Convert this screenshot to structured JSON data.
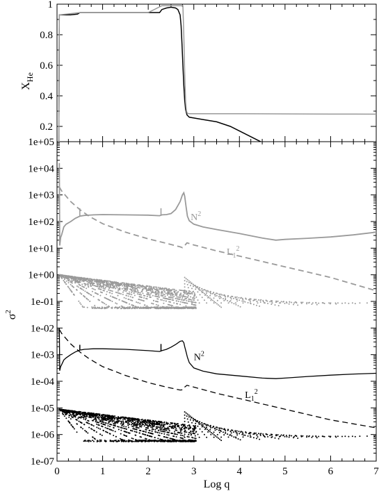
{
  "chart_data": [
    {
      "type": "line",
      "panel": "top",
      "ylabel": "X",
      "ylabel_sub": "He",
      "xlim": [
        0,
        7
      ],
      "ylim": [
        0.1,
        1.0
      ],
      "yticks": [
        0.2,
        0.4,
        0.6,
        0.8,
        1.0
      ],
      "ytick_labels": [
        "0.2",
        "0.4",
        "0.6",
        "0.8",
        "1"
      ],
      "series": [
        {
          "color": "#000000",
          "x": [
            0.0,
            0.04,
            0.05,
            0.1,
            0.2,
            0.3,
            0.45,
            0.5,
            0.55,
            0.6,
            0.8,
            1.0,
            1.5,
            2.0,
            2.25,
            2.3,
            2.4,
            2.5,
            2.6,
            2.65,
            2.7,
            2.72,
            2.74,
            2.76,
            2.78,
            2.8,
            2.82,
            2.85,
            2.9,
            3.0,
            3.2,
            3.5,
            3.8,
            4.0,
            4.2,
            4.4,
            4.6,
            4.8,
            4.9,
            5.0,
            5.2,
            5.6,
            6.0,
            6.5,
            7.0
          ],
          "y": [
            0.06,
            0.06,
            0.93,
            0.93,
            0.93,
            0.93,
            0.935,
            0.945,
            0.945,
            0.945,
            0.945,
            0.945,
            0.945,
            0.945,
            0.945,
            0.965,
            0.975,
            0.98,
            0.975,
            0.965,
            0.93,
            0.86,
            0.74,
            0.6,
            0.47,
            0.37,
            0.31,
            0.275,
            0.26,
            0.255,
            0.245,
            0.23,
            0.2,
            0.17,
            0.14,
            0.11,
            0.08,
            0.05,
            0.035,
            0.03,
            0.03,
            0.03,
            0.03,
            0.03,
            0.03
          ]
        },
        {
          "color": "#9a9a9a",
          "x": [
            0.0,
            0.04,
            0.05,
            0.5,
            1.0,
            2.0,
            2.3,
            2.5,
            2.7,
            2.76,
            2.78,
            2.8,
            2.82,
            2.84,
            2.86,
            2.9,
            3.0,
            4.0,
            5.0,
            6.0,
            7.0
          ],
          "y": [
            0.06,
            0.06,
            0.93,
            0.945,
            0.945,
            0.945,
            0.99,
            0.99,
            0.99,
            0.99,
            0.8,
            0.55,
            0.36,
            0.3,
            0.285,
            0.283,
            0.283,
            0.283,
            0.282,
            0.281,
            0.28
          ]
        }
      ]
    },
    {
      "type": "line",
      "panel": "bottom",
      "xlabel": "Log q",
      "ylabel": "σ",
      "ylabel_sup": "2",
      "yscale": "log",
      "xlim": [
        0,
        7
      ],
      "ylim_exponent": [
        -7,
        5
      ],
      "xticks": [
        0,
        1,
        2,
        3,
        4,
        5,
        6,
        7
      ],
      "xtick_labels": [
        "0",
        "1",
        "2",
        "3",
        "4",
        "5",
        "6",
        "7"
      ],
      "ytick_labels": [
        "1e-07",
        "1e-06",
        "1e-05",
        "1e-04",
        "1e-03",
        "1e-02",
        "1e-01",
        "1e+00",
        "1e+01",
        "1e+02",
        "1e+03",
        "1e+04",
        "1e+05"
      ],
      "series": [
        {
          "label": "N",
          "label_sup": "2",
          "color": "#9a9a9a",
          "style": "solid",
          "x": [
            0.05,
            0.06,
            0.08,
            0.1,
            0.15,
            0.2,
            0.3,
            0.4,
            0.5,
            0.6,
            0.8,
            1.0,
            1.5,
            2.0,
            2.25,
            2.3,
            2.4,
            2.5,
            2.6,
            2.7,
            2.75,
            2.78,
            2.8,
            2.83,
            2.86,
            2.9,
            3.0,
            3.2,
            3.5,
            4.0,
            4.5,
            4.8,
            5.0,
            5.5,
            6.0,
            6.5,
            7.0
          ],
          "exp": [
            4.2,
            1.1,
            1.4,
            1.5,
            1.8,
            1.9,
            2.0,
            2.12,
            2.2,
            2.23,
            2.25,
            2.26,
            2.25,
            2.24,
            2.22,
            2.25,
            2.26,
            2.3,
            2.45,
            2.75,
            3.0,
            3.08,
            2.95,
            2.55,
            2.2,
            2.03,
            1.9,
            1.8,
            1.7,
            1.55,
            1.38,
            1.3,
            1.33,
            1.37,
            1.42,
            1.5,
            1.6
          ]
        },
        {
          "label": "L",
          "label_sub": "1",
          "label_sup": "2",
          "color": "#9a9a9a",
          "style": "dashed",
          "x": [
            0.05,
            0.1,
            0.2,
            0.3,
            0.5,
            0.7,
            1.0,
            1.5,
            2.0,
            2.4,
            2.7,
            2.75,
            2.8,
            2.85,
            3.0,
            3.5,
            4.0,
            4.5,
            5.0,
            5.5,
            6.0,
            6.5,
            7.0
          ],
          "exp": [
            3.3,
            3.15,
            2.95,
            2.75,
            2.45,
            2.2,
            1.92,
            1.6,
            1.35,
            1.18,
            1.05,
            1.02,
            1.1,
            1.2,
            1.12,
            0.9,
            0.7,
            0.5,
            0.3,
            0.1,
            -0.1,
            -0.35,
            -0.6
          ]
        },
        {
          "label": "N",
          "label_sup": "2",
          "color": "#000000",
          "style": "solid",
          "x": [
            0.05,
            0.06,
            0.08,
            0.1,
            0.15,
            0.2,
            0.3,
            0.4,
            0.5,
            0.6,
            0.8,
            1.0,
            1.5,
            2.0,
            2.25,
            2.3,
            2.4,
            2.5,
            2.6,
            2.7,
            2.75,
            2.78,
            2.8,
            2.83,
            2.86,
            2.9,
            3.0,
            3.2,
            3.5,
            4.0,
            4.5,
            4.8,
            5.0,
            5.5,
            6.0,
            6.5,
            7.0
          ],
          "exp": [
            -2.0,
            -3.6,
            -3.45,
            -3.38,
            -3.2,
            -3.12,
            -3.0,
            -2.9,
            -2.83,
            -2.8,
            -2.78,
            -2.78,
            -2.8,
            -2.85,
            -2.88,
            -2.85,
            -2.8,
            -2.72,
            -2.62,
            -2.5,
            -2.48,
            -2.55,
            -2.7,
            -2.9,
            -3.1,
            -3.3,
            -3.5,
            -3.62,
            -3.72,
            -3.8,
            -3.88,
            -3.9,
            -3.88,
            -3.82,
            -3.77,
            -3.73,
            -3.7
          ]
        },
        {
          "label": "L",
          "label_sub": "1",
          "label_sup": "2",
          "color": "#000000",
          "style": "dashed",
          "x": [
            0.05,
            0.1,
            0.2,
            0.3,
            0.5,
            0.7,
            1.0,
            1.5,
            2.0,
            2.4,
            2.7,
            2.75,
            2.8,
            2.85,
            3.0,
            3.5,
            4.0,
            4.5,
            5.0,
            5.5,
            6.0,
            6.5,
            7.0
          ],
          "exp": [
            -2.05,
            -2.2,
            -2.4,
            -2.6,
            -2.9,
            -3.15,
            -3.45,
            -3.78,
            -4.05,
            -4.22,
            -4.33,
            -4.32,
            -4.22,
            -4.15,
            -4.22,
            -4.45,
            -4.65,
            -4.85,
            -5.05,
            -5.25,
            -5.45,
            -5.6,
            -5.75
          ]
        }
      ],
      "mode_dots": [
        {
          "color": "#9a9a9a",
          "base_exp": -1.27,
          "top_exp": 0.0
        },
        {
          "color": "#000000",
          "base_exp": -6.27,
          "top_exp": -5.05
        }
      ]
    }
  ]
}
